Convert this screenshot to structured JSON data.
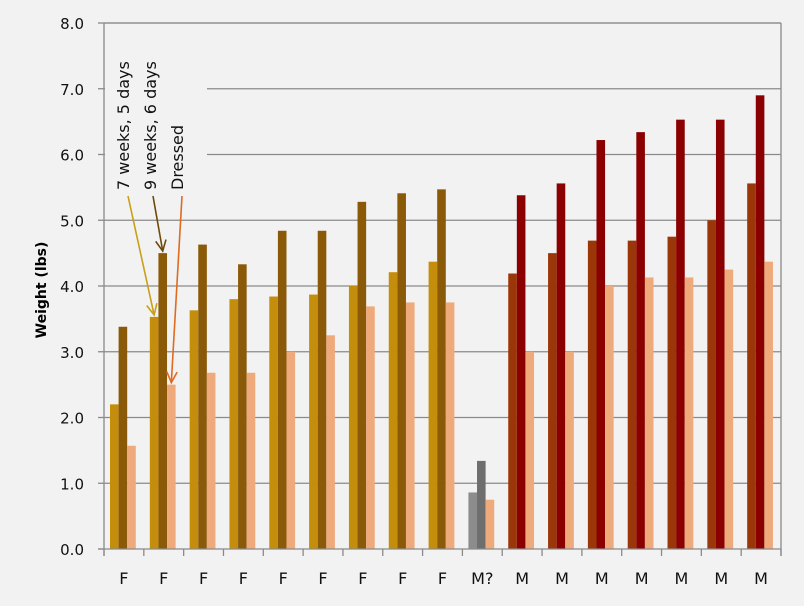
{
  "chart_data": {
    "type": "bar",
    "title": "",
    "xlabel": "",
    "ylabel": "Weight (lbs)",
    "ylim": [
      0,
      8
    ],
    "yticks": [
      "0.0",
      "1.0",
      "2.0",
      "3.0",
      "4.0",
      "5.0",
      "6.0",
      "7.0",
      "8.0"
    ],
    "grid": true,
    "legend_position": "none (annotated with arrows on second group)",
    "categories": [
      "F",
      "F",
      "F",
      "F",
      "F",
      "F",
      "F",
      "F",
      "F",
      "M?",
      "M",
      "M",
      "M",
      "M",
      "M",
      "M",
      "M"
    ],
    "series": [
      {
        "name": "7 weeks, 5 days",
        "values": [
          2.2,
          3.53,
          3.63,
          3.8,
          3.84,
          3.87,
          4.0,
          4.21,
          4.37,
          0.86,
          4.19,
          4.5,
          4.69,
          4.69,
          4.75,
          5.0,
          5.56
        ]
      },
      {
        "name": "9 weeks, 6 days",
        "values": [
          3.38,
          4.5,
          4.63,
          4.33,
          4.84,
          4.84,
          5.28,
          5.41,
          5.47,
          1.34,
          5.38,
          5.56,
          6.22,
          6.34,
          6.53,
          6.53,
          6.9
        ]
      },
      {
        "name": "Dressed",
        "values": [
          1.57,
          2.5,
          2.68,
          2.68,
          3.0,
          3.25,
          3.69,
          3.75,
          3.75,
          0.75,
          3.0,
          3.0,
          4.0,
          4.13,
          4.13,
          4.25,
          4.37
        ]
      }
    ],
    "colors": {
      "F": [
        "#c58d0c",
        "#8a5a08",
        "#efaa7c"
      ],
      "M?": [
        "#8c8c8c",
        "#6e6e6e",
        "#efaa7c"
      ],
      "M": [
        "#9b3608",
        "#8b0000",
        "#efaa7c"
      ]
    },
    "annotations": [
      {
        "text": "7 weeks, 5 days",
        "color": "#c8a018",
        "points_to_series": 0,
        "points_to_category": 1
      },
      {
        "text": "9 weeks, 6 days",
        "color": "#6e4a0a",
        "points_to_series": 1,
        "points_to_category": 1
      },
      {
        "text": "Dressed",
        "color": "#e06a20",
        "points_to_series": 2,
        "points_to_category": 1
      }
    ]
  }
}
